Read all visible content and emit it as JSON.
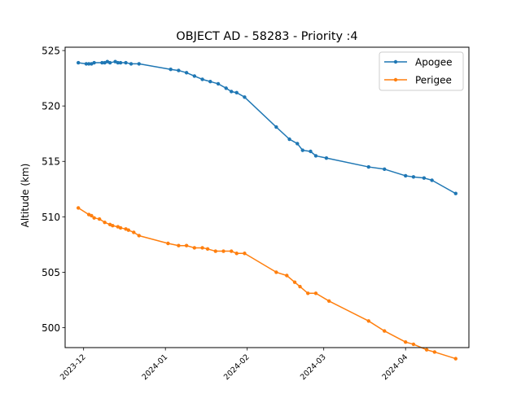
{
  "chart_data": {
    "type": "line",
    "title": "OBJECT AD - 58283 - Priority :4",
    "xlabel": "",
    "ylabel": "Altitude (km)",
    "x_type": "date",
    "xlim": [
      "2023-11-24",
      "2024-04-25"
    ],
    "ylim": [
      498.2,
      525.3
    ],
    "x_ticks": [
      "2023-12",
      "2024-01",
      "2024-02",
      "2024-03",
      "2024-04"
    ],
    "y_ticks": [
      500,
      505,
      510,
      515,
      520,
      525
    ],
    "grid": false,
    "legend": {
      "position": "top-right",
      "entries": [
        "Apogee",
        "Perigee"
      ]
    },
    "series": [
      {
        "name": "Apogee",
        "color": "#1f77b4",
        "points": [
          {
            "x": "2023-11-29",
            "y": 523.9
          },
          {
            "x": "2023-12-02",
            "y": 523.8
          },
          {
            "x": "2023-12-03",
            "y": 523.8
          },
          {
            "x": "2023-12-04",
            "y": 523.8
          },
          {
            "x": "2023-12-05",
            "y": 523.9
          },
          {
            "x": "2023-12-08",
            "y": 523.9
          },
          {
            "x": "2023-12-09",
            "y": 523.9
          },
          {
            "x": "2023-12-10",
            "y": 524.0
          },
          {
            "x": "2023-12-11",
            "y": 523.9
          },
          {
            "x": "2023-12-13",
            "y": 524.0
          },
          {
            "x": "2023-12-14",
            "y": 523.9
          },
          {
            "x": "2023-12-15",
            "y": 523.9
          },
          {
            "x": "2023-12-17",
            "y": 523.9
          },
          {
            "x": "2023-12-19",
            "y": 523.8
          },
          {
            "x": "2023-12-22",
            "y": 523.8
          },
          {
            "x": "2024-01-03",
            "y": 523.3
          },
          {
            "x": "2024-01-06",
            "y": 523.2
          },
          {
            "x": "2024-01-09",
            "y": 523.0
          },
          {
            "x": "2024-01-12",
            "y": 522.7
          },
          {
            "x": "2024-01-15",
            "y": 522.4
          },
          {
            "x": "2024-01-18",
            "y": 522.2
          },
          {
            "x": "2024-01-21",
            "y": 522.0
          },
          {
            "x": "2024-01-24",
            "y": 521.6
          },
          {
            "x": "2024-01-26",
            "y": 521.3
          },
          {
            "x": "2024-01-28",
            "y": 521.2
          },
          {
            "x": "2024-01-31",
            "y": 520.8
          },
          {
            "x": "2024-02-12",
            "y": 518.1
          },
          {
            "x": "2024-02-17",
            "y": 517.0
          },
          {
            "x": "2024-02-20",
            "y": 516.6
          },
          {
            "x": "2024-02-22",
            "y": 516.0
          },
          {
            "x": "2024-02-25",
            "y": 515.9
          },
          {
            "x": "2024-02-27",
            "y": 515.5
          },
          {
            "x": "2024-03-02",
            "y": 515.3
          },
          {
            "x": "2024-03-18",
            "y": 514.5
          },
          {
            "x": "2024-03-24",
            "y": 514.3
          },
          {
            "x": "2024-04-01",
            "y": 513.7
          },
          {
            "x": "2024-04-04",
            "y": 513.6
          },
          {
            "x": "2024-04-08",
            "y": 513.5
          },
          {
            "x": "2024-04-11",
            "y": 513.3
          },
          {
            "x": "2024-04-20",
            "y": 512.1
          }
        ]
      },
      {
        "name": "Perigee",
        "color": "#ff7f0e",
        "points": [
          {
            "x": "2023-11-29",
            "y": 510.8
          },
          {
            "x": "2023-12-03",
            "y": 510.2
          },
          {
            "x": "2023-12-04",
            "y": 510.1
          },
          {
            "x": "2023-12-05",
            "y": 509.9
          },
          {
            "x": "2023-12-07",
            "y": 509.8
          },
          {
            "x": "2023-12-09",
            "y": 509.5
          },
          {
            "x": "2023-12-11",
            "y": 509.3
          },
          {
            "x": "2023-12-12",
            "y": 509.2
          },
          {
            "x": "2023-12-14",
            "y": 509.1
          },
          {
            "x": "2023-12-15",
            "y": 509.0
          },
          {
            "x": "2023-12-17",
            "y": 508.9
          },
          {
            "x": "2023-12-18",
            "y": 508.8
          },
          {
            "x": "2023-12-20",
            "y": 508.6
          },
          {
            "x": "2023-12-22",
            "y": 508.3
          },
          {
            "x": "2024-01-02",
            "y": 507.6
          },
          {
            "x": "2024-01-06",
            "y": 507.4
          },
          {
            "x": "2024-01-09",
            "y": 507.4
          },
          {
            "x": "2024-01-12",
            "y": 507.2
          },
          {
            "x": "2024-01-15",
            "y": 507.2
          },
          {
            "x": "2024-01-17",
            "y": 507.1
          },
          {
            "x": "2024-01-20",
            "y": 506.9
          },
          {
            "x": "2024-01-23",
            "y": 506.9
          },
          {
            "x": "2024-01-26",
            "y": 506.9
          },
          {
            "x": "2024-01-28",
            "y": 506.7
          },
          {
            "x": "2024-01-31",
            "y": 506.7
          },
          {
            "x": "2024-02-12",
            "y": 505.0
          },
          {
            "x": "2024-02-16",
            "y": 504.7
          },
          {
            "x": "2024-02-19",
            "y": 504.1
          },
          {
            "x": "2024-02-21",
            "y": 503.7
          },
          {
            "x": "2024-02-24",
            "y": 503.1
          },
          {
            "x": "2024-02-27",
            "y": 503.1
          },
          {
            "x": "2024-03-03",
            "y": 502.4
          },
          {
            "x": "2024-03-18",
            "y": 500.6
          },
          {
            "x": "2024-03-24",
            "y": 499.7
          },
          {
            "x": "2024-04-01",
            "y": 498.7
          },
          {
            "x": "2024-04-04",
            "y": 498.5
          },
          {
            "x": "2024-04-09",
            "y": 498.0
          },
          {
            "x": "2024-04-12",
            "y": 497.8
          },
          {
            "x": "2024-04-20",
            "y": 497.2
          }
        ]
      }
    ]
  }
}
